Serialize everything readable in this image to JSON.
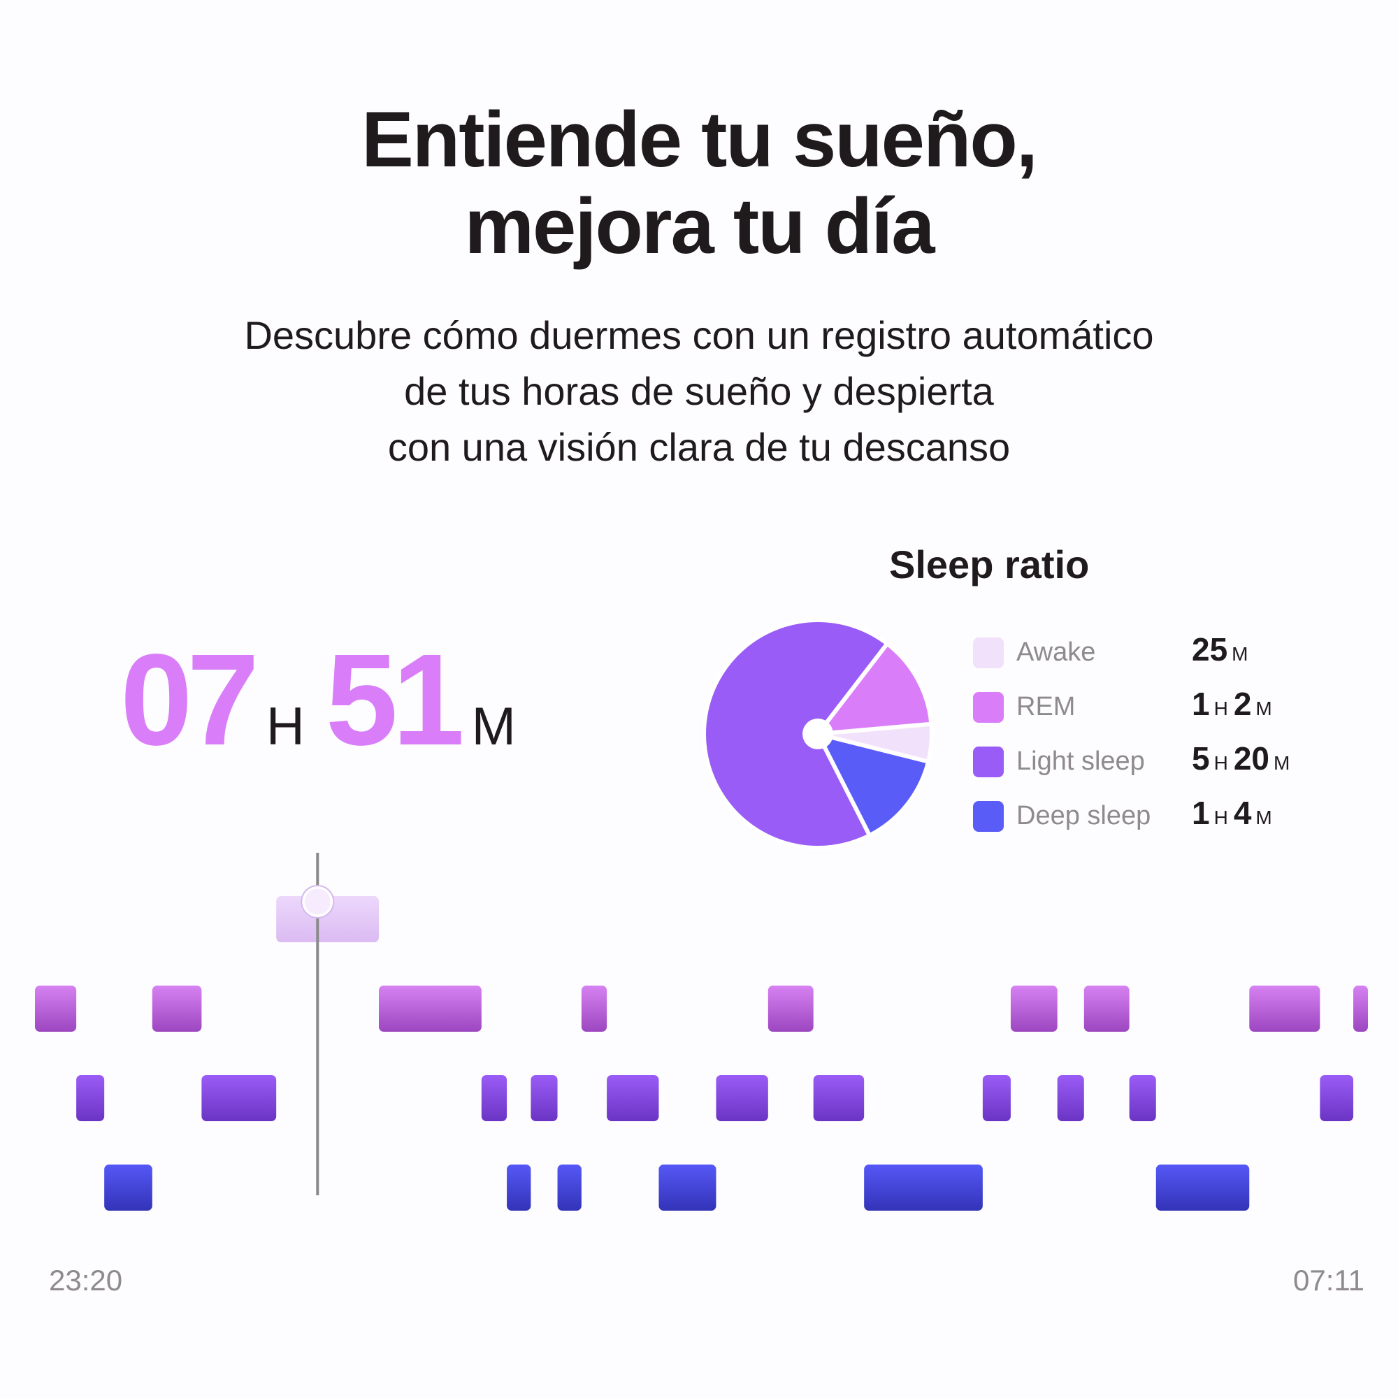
{
  "headline": {
    "line1": "Entiende tu sueño,",
    "line2": "mejora tu día"
  },
  "subtitle": {
    "line1": "Descubre cómo duermes con un registro automático",
    "line2": "de tus horas de sueño y despierta",
    "line3": "con una visión clara de tu descanso"
  },
  "total_sleep": {
    "hours": "07",
    "hours_unit": "H",
    "minutes": "51",
    "minutes_unit": "M"
  },
  "sleep_ratio": {
    "title": "Sleep ratio",
    "stages": [
      {
        "label": "Awake",
        "parts": [
          {
            "n": "25",
            "u": "M"
          }
        ],
        "minutes": 25,
        "color": "#f2e1fb"
      },
      {
        "label": "REM",
        "parts": [
          {
            "n": "1",
            "u": "H"
          },
          {
            "n": "2",
            "u": "M"
          }
        ],
        "minutes": 62,
        "color": "#d97ef8"
      },
      {
        "label": "Light sleep",
        "parts": [
          {
            "n": "5",
            "u": "H"
          },
          {
            "n": "20",
            "u": "M"
          }
        ],
        "minutes": 320,
        "color": "#9a5cf6"
      },
      {
        "label": "Deep sleep",
        "parts": [
          {
            "n": "1",
            "u": "H"
          },
          {
            "n": "4",
            "u": "M"
          }
        ],
        "minutes": 64,
        "color": "#5a5cf8"
      }
    ]
  },
  "hypnogram": {
    "start_label": "23:20",
    "end_label": "07:11",
    "level_names": [
      "Awake",
      "REM",
      "Light sleep",
      "Deep sleep"
    ],
    "segments": [
      {
        "from": 0.0,
        "to": 0.031,
        "level": "REM"
      },
      {
        "from": 0.031,
        "to": 0.052,
        "level": "Light sleep"
      },
      {
        "from": 0.052,
        "to": 0.088,
        "level": "Deep sleep"
      },
      {
        "from": 0.088,
        "to": 0.125,
        "level": "REM"
      },
      {
        "from": 0.125,
        "to": 0.181,
        "level": "Light sleep"
      },
      {
        "from": 0.181,
        "to": 0.258,
        "level": "Awake"
      },
      {
        "from": 0.258,
        "to": 0.335,
        "level": "REM"
      },
      {
        "from": 0.335,
        "to": 0.354,
        "level": "Light sleep"
      },
      {
        "from": 0.354,
        "to": 0.372,
        "level": "Deep sleep"
      },
      {
        "from": 0.372,
        "to": 0.392,
        "level": "Light sleep"
      },
      {
        "from": 0.392,
        "to": 0.41,
        "level": "Deep sleep"
      },
      {
        "from": 0.41,
        "to": 0.429,
        "level": "REM"
      },
      {
        "from": 0.429,
        "to": 0.468,
        "level": "Light sleep"
      },
      {
        "from": 0.468,
        "to": 0.511,
        "level": "Deep sleep"
      },
      {
        "from": 0.511,
        "to": 0.55,
        "level": "Light sleep"
      },
      {
        "from": 0.55,
        "to": 0.584,
        "level": "REM"
      },
      {
        "from": 0.584,
        "to": 0.622,
        "level": "Light sleep"
      },
      {
        "from": 0.622,
        "to": 0.711,
        "level": "Deep sleep"
      },
      {
        "from": 0.711,
        "to": 0.732,
        "level": "Light sleep"
      },
      {
        "from": 0.732,
        "to": 0.767,
        "level": "REM"
      },
      {
        "from": 0.767,
        "to": 0.787,
        "level": "Light sleep"
      },
      {
        "from": 0.787,
        "to": 0.821,
        "level": "REM"
      },
      {
        "from": 0.821,
        "to": 0.841,
        "level": "Light sleep"
      },
      {
        "from": 0.841,
        "to": 0.911,
        "level": "Deep sleep"
      },
      {
        "from": 0.911,
        "to": 0.964,
        "level": "REM"
      },
      {
        "from": 0.964,
        "to": 0.989,
        "level": "Light sleep"
      },
      {
        "from": 0.989,
        "to": 1.0,
        "level": "REM"
      }
    ],
    "cursor_fraction": 0.212
  },
  "colors": {
    "awake": "#f2e1fb",
    "rem": "#d97ef8",
    "light": "#9a5cf6",
    "deep": "#5a5cf8",
    "text_dark": "#1f1a1c",
    "text_muted": "#8e8a8e"
  }
}
